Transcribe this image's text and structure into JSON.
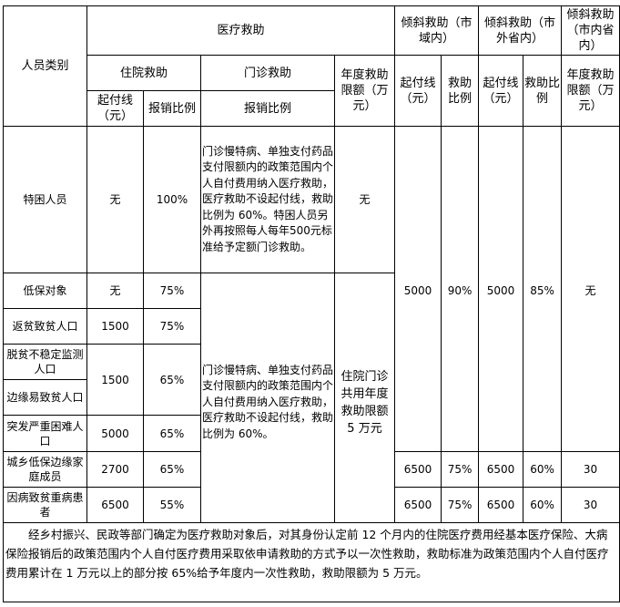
{
  "header": {
    "person_type": "人员类别",
    "medical_aid": "医疗救助",
    "tilt_city": "倾斜救助（市域内）",
    "tilt_outside": "倾斜救助（市外省内）",
    "tilt_inside": "倾斜救助（市内省内）",
    "inpatient": "住院救助",
    "outpatient": "门诊救助",
    "annual_limit": "年度救助限额（万元）",
    "threshold": "起付线（元）",
    "ratio": "救助比例",
    "reimb_ratio": "报销比例"
  },
  "rows": [
    {
      "name": "特困人员",
      "threshold": "无",
      "ratio": "100%",
      "outpatient": "门诊慢特病、单独支付药品支付限额内的政策范围内个人自付费用纳入医疗救助，医疗救助不设起付线，救助比例为 60%。特困人员另外再按照每人每年500元标准给予定额门诊救助。",
      "limit": "无"
    },
    {
      "name": "低保对象",
      "threshold": "无",
      "ratio": "75%"
    },
    {
      "name": "返贫致贫人口",
      "threshold": "1500",
      "ratio": "75%"
    },
    {
      "name": "脱贫不稳定监测人口",
      "threshold": "1500",
      "ratio": "65%"
    },
    {
      "name": "边缘易致贫人口"
    },
    {
      "name": "突发严重困难人口",
      "threshold": "5000",
      "ratio": "65%"
    },
    {
      "name": "城乡低保边缘家庭成员",
      "threshold": "2700",
      "ratio": "65%",
      "t1": "6500",
      "r1": "75%",
      "t2": "6500",
      "r2": "60%",
      "l3": "30"
    },
    {
      "name": "因病致贫重病患者",
      "threshold": "6500",
      "ratio": "55%",
      "t1": "6500",
      "r1": "75%",
      "t2": "6500",
      "r2": "60%",
      "l3": "30"
    }
  ],
  "shared": {
    "outpatient": "门诊慢特病、单独支付药品支付限额内的政策范围内个人自付费用纳入医疗救助，医疗救助不设起付线，救助比例为 60%。",
    "limit": "住院门诊共用年度救助限额 5 万元",
    "t1": "5000",
    "r1": "90%",
    "t2": "5000",
    "r2": "85%",
    "l3": "无"
  },
  "footer": "经乡村振兴、民政等部门确定为医疗救助对象后，对其身份认定前 12 个月内的住院医疗费用经基本医疗保险、大病保险报销后的政策范围内个人自付医疗费用采取依申请救助的方式予以一次性救助，救助标准为政策范围内个人自付医疗费用累计在 1 万元以上的部分按 65%给予年度内一次性救助，救助限额为 5 万元。"
}
